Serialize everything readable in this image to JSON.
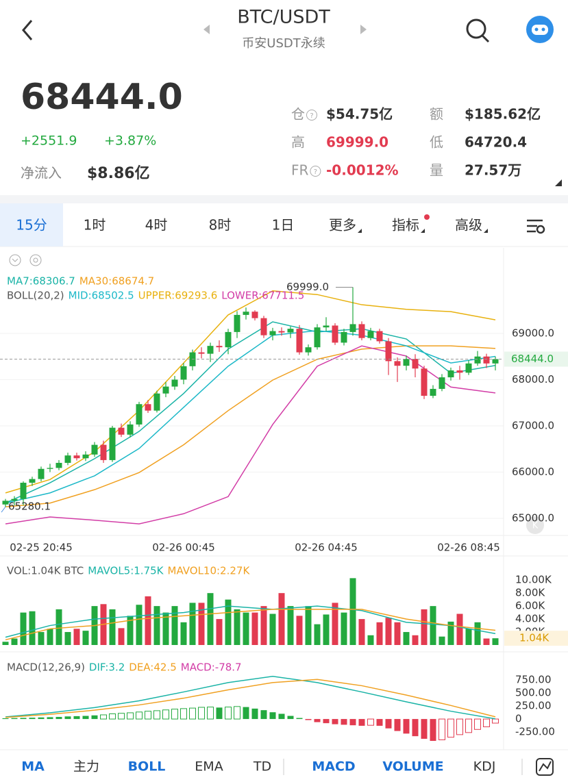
{
  "header": {
    "title": "BTC/USDT",
    "subtitle": "币安USDT永续"
  },
  "quote": {
    "price": "68444.0",
    "change": "+2551.9",
    "change_pct": "+3.87%",
    "netflow_label": "净流入",
    "netflow": "$8.86亿"
  },
  "stats": [
    {
      "label": "仓",
      "value": "$54.75亿",
      "help": true
    },
    {
      "label": "额",
      "value": "$185.62亿"
    },
    {
      "label": "高",
      "value": "69999.0",
      "color": "#e23b50"
    },
    {
      "label": "低",
      "value": "64720.4"
    },
    {
      "label": "FR",
      "value": "-0.0012%",
      "help": true,
      "color": "#e23b50"
    },
    {
      "label": "量",
      "value": "27.57万"
    }
  ],
  "tabs": {
    "items": [
      "15分",
      "1时",
      "4时",
      "8时",
      "1日",
      "更多",
      "指标",
      "高级"
    ],
    "selected": 0
  },
  "chart_data": [
    {
      "type": "candlestick",
      "up_color": "#23a93f",
      "down_color": "#e23b50",
      "grid": true,
      "categories": [
        null,
        null,
        null,
        null,
        "02-25 20:45",
        null,
        null,
        null,
        null,
        null,
        null,
        null,
        null,
        null,
        null,
        null,
        null,
        null,
        null,
        null,
        "02-26 00:45",
        null,
        null,
        null,
        null,
        null,
        null,
        null,
        null,
        null,
        null,
        null,
        null,
        null,
        null,
        null,
        "02-26 04:45",
        null,
        null,
        null,
        null,
        null,
        null,
        null,
        null,
        null,
        null,
        null,
        null,
        null,
        null,
        null,
        "02-26 08:45",
        null,
        null,
        null
      ],
      "candles": [
        [
          65300,
          65420,
          65250,
          65380
        ],
        [
          65380,
          65480,
          65280,
          65420
        ],
        [
          65420,
          65800,
          65280.1,
          65770
        ],
        [
          65770,
          65900,
          65700,
          65850
        ],
        [
          65850,
          66120,
          65800,
          66070
        ],
        [
          66070,
          66180,
          66000,
          66090
        ],
        [
          66090,
          66260,
          66040,
          66200
        ],
        [
          66200,
          66420,
          66150,
          66360
        ],
        [
          66360,
          66420,
          66250,
          66300
        ],
        [
          66300,
          66450,
          66240,
          66380
        ],
        [
          66380,
          66650,
          66330,
          66590
        ],
        [
          66590,
          66680,
          66200,
          66260
        ],
        [
          66260,
          67000,
          66220,
          66960
        ],
        [
          66960,
          67050,
          66760,
          66810
        ],
        [
          66810,
          67100,
          66750,
          67030
        ],
        [
          67030,
          67520,
          66980,
          67470
        ],
        [
          67470,
          67560,
          67280,
          67330
        ],
        [
          67330,
          67760,
          67290,
          67700
        ],
        [
          67700,
          67950,
          67620,
          67850
        ],
        [
          67850,
          68080,
          67780,
          68000
        ],
        [
          68000,
          68360,
          67900,
          68290
        ],
        [
          68290,
          68650,
          68200,
          68590
        ],
        [
          68590,
          68700,
          68460,
          68560
        ],
        [
          68560,
          68800,
          68380,
          68730
        ],
        [
          68730,
          68850,
          68600,
          68700
        ],
        [
          68700,
          69100,
          68550,
          69030
        ],
        [
          69030,
          69480,
          68900,
          69400
        ],
        [
          69400,
          69560,
          69300,
          69470
        ],
        [
          69470,
          69500,
          69280,
          69330
        ],
        [
          69330,
          69380,
          68900,
          68960
        ],
        [
          68960,
          69120,
          68850,
          69050
        ],
        [
          69050,
          69130,
          68950,
          69020
        ],
        [
          69020,
          69150,
          68900,
          69100
        ],
        [
          69100,
          69180,
          68540,
          68590
        ],
        [
          68590,
          68760,
          68520,
          68700
        ],
        [
          68700,
          69200,
          68650,
          69130
        ],
        [
          69130,
          69350,
          69050,
          69170
        ],
        [
          69170,
          69220,
          68750,
          68800
        ],
        [
          68800,
          69100,
          68740,
          69030
        ],
        [
          69030,
          69999,
          68950,
          69200
        ],
        [
          69200,
          69260,
          68850,
          68900
        ],
        [
          68900,
          69120,
          68850,
          69050
        ],
        [
          69050,
          69100,
          68780,
          68830
        ],
        [
          68830,
          68900,
          68100,
          68400
        ],
        [
          68400,
          68480,
          67950,
          68300
        ],
        [
          68300,
          68520,
          68200,
          68450
        ],
        [
          68450,
          68550,
          68050,
          68240
        ],
        [
          68240,
          68300,
          67580,
          67650
        ],
        [
          67650,
          67880,
          67600,
          67800
        ],
        [
          67800,
          68120,
          67750,
          68050
        ],
        [
          68050,
          68260,
          67980,
          68200
        ],
        [
          68200,
          68300,
          68000,
          68150
        ],
        [
          68150,
          68420,
          68100,
          68350
        ],
        [
          68350,
          68620,
          68300,
          68500
        ],
        [
          68500,
          68560,
          68250,
          68350
        ],
        [
          68350,
          68500,
          68200,
          68444
        ]
      ],
      "ylim": [
        64630,
        70850
      ],
      "yticks": [
        {
          "value": 65000,
          "label": "65000.0"
        },
        {
          "value": 66000,
          "label": "66000.0"
        },
        {
          "value": 67000,
          "label": "67000.0"
        },
        {
          "value": 68000,
          "label": "68000.0"
        },
        {
          "value": 69000,
          "label": "69000.0"
        }
      ],
      "series": [
        {
          "name": "MA7:68306.7",
          "color": "#19b3a6",
          "x": [
            0,
            5,
            10,
            15,
            20,
            25,
            30,
            35,
            40,
            45,
            50,
            55
          ],
          "values": [
            65330,
            65770,
            66290,
            66880,
            67700,
            68660,
            69250,
            69030,
            69100,
            68880,
            68140,
            68306.7
          ]
        },
        {
          "name": "MA30:68674.7",
          "color": "#f0a020",
          "x": [
            0,
            5,
            10,
            15,
            20,
            25,
            30,
            35,
            40,
            45,
            50,
            55
          ],
          "values": [
            65250,
            65330,
            65620,
            65990,
            66590,
            67330,
            67990,
            68440,
            68660,
            68730,
            68730,
            68674.7
          ]
        },
        {
          "name": "MID:68502.5",
          "color": "#1cb8c8",
          "x": [
            0,
            5,
            10,
            15,
            20,
            25,
            30,
            35,
            40,
            45,
            50,
            55
          ],
          "values": [
            65330,
            65550,
            65920,
            66510,
            67400,
            68290,
            68960,
            69060,
            68960,
            68730,
            68360,
            68502.5
          ]
        },
        {
          "name": "UPPER:69293.6",
          "color": "#e8b10e",
          "x": [
            0,
            5,
            10,
            15,
            20,
            25,
            30,
            35,
            40,
            45,
            50,
            55
          ],
          "values": [
            65550,
            65840,
            66440,
            67330,
            68360,
            69400,
            69920,
            69840,
            69620,
            69520,
            69470,
            69293.6
          ]
        },
        {
          "name": "LOWER:67711.5",
          "color": "#d23ca6",
          "x": [
            0,
            5,
            10,
            15,
            20,
            25,
            30,
            35,
            40,
            45,
            50,
            55
          ],
          "values": [
            64880,
            65030,
            64960,
            64880,
            65100,
            65470,
            67030,
            68290,
            68730,
            68510,
            67840,
            67711.5
          ]
        }
      ],
      "overlay_label": "BOLL(20,2)",
      "last": {
        "value": 68444,
        "label": "68444.0"
      },
      "annotations": [
        "69999.0",
        "65280.1"
      ]
    },
    {
      "type": "bar",
      "title": "VOL:1.04K BTC",
      "values": [
        500,
        1000,
        5000,
        5200,
        2000,
        2500,
        5500,
        2000,
        2500,
        2200,
        6000,
        6300,
        5500,
        2600,
        4500,
        6200,
        7500,
        6000,
        5000,
        6000,
        3500,
        6500,
        6500,
        8000,
        4000,
        7000,
        5500,
        5000,
        5000,
        6000,
        4800,
        8000,
        6000,
        4500,
        6000,
        3200,
        4700,
        6500,
        5000,
        10300,
        4000,
        1500,
        3500,
        4200,
        3500,
        2000,
        1500,
        5500,
        6000,
        1300,
        3600,
        4800,
        2500,
        3500,
        1000,
        1040
      ],
      "ylim": [
        0,
        13400
      ],
      "yticks": [
        {
          "value": 2000,
          "label": "2.00K"
        },
        {
          "value": 4000,
          "label": "4.00K"
        },
        {
          "value": 6000,
          "label": "6.00K"
        },
        {
          "value": 8000,
          "label": "8.00K"
        },
        {
          "value": 10000,
          "label": "10.00K"
        }
      ],
      "series": [
        {
          "name": "MAVOL5:1.75K",
          "color": "#19b3a6",
          "x": [
            0,
            5,
            10,
            15,
            20,
            25,
            30,
            35,
            40,
            45,
            50,
            55
          ],
          "values": [
            1200,
            3000,
            4000,
            4500,
            5000,
            6000,
            5500,
            6000,
            5300,
            3500,
            3000,
            1750
          ]
        },
        {
          "name": "MAVOL10:2.27K",
          "color": "#f0a020",
          "x": [
            0,
            5,
            10,
            15,
            20,
            25,
            30,
            35,
            40,
            45,
            50,
            55
          ],
          "values": [
            800,
            2500,
            3000,
            4000,
            4500,
            5000,
            5500,
            5500,
            5500,
            4000,
            3000,
            2270
          ]
        }
      ],
      "last": {
        "value": 1040,
        "label": "1.04K"
      }
    },
    {
      "type": "bar",
      "title": "MACD(12,26,9)",
      "name": "MACD:-78.7",
      "values": [
        15,
        18,
        22,
        25,
        30,
        35,
        40,
        50,
        55,
        60,
        70,
        80,
        100,
        110,
        120,
        135,
        150,
        160,
        175,
        190,
        200,
        210,
        225,
        230,
        220,
        230,
        240,
        230,
        200,
        170,
        130,
        100,
        60,
        20,
        -20,
        -60,
        -80,
        -100,
        -110,
        -120,
        -130,
        -120,
        -130,
        -180,
        -230,
        -280,
        -330,
        -380,
        -420,
        -400,
        -350,
        -300,
        -260,
        -200,
        -150,
        -78.7
      ],
      "ylim": [
        -525,
        1185
      ],
      "yticks": [
        {
          "value": -250,
          "label": "-250.00"
        },
        0,
        {
          "value": 250,
          "label": "250.00"
        },
        {
          "value": 500,
          "label": "500.00"
        },
        {
          "value": 750,
          "label": "750.00"
        }
      ],
      "series": [
        {
          "name": "DIF:3.2",
          "color": "#19b3a6",
          "x": [
            0,
            5,
            10,
            15,
            20,
            25,
            30,
            35,
            40,
            45,
            50,
            55
          ],
          "values": [
            40,
            120,
            220,
            350,
            520,
            700,
            820,
            700,
            520,
            330,
            150,
            3.2
          ]
        },
        {
          "name": "DEA:42.5",
          "color": "#f0a020",
          "x": [
            0,
            5,
            10,
            15,
            20,
            25,
            30,
            35,
            40,
            45,
            50,
            55
          ],
          "values": [
            30,
            90,
            170,
            270,
            400,
            560,
            700,
            760,
            640,
            460,
            260,
            42.5
          ]
        }
      ]
    }
  ],
  "indicator_bar": [
    {
      "label": "MA",
      "active": true
    },
    {
      "label": "主力"
    },
    {
      "label": "BOLL",
      "active": true
    },
    {
      "label": "EMA"
    },
    {
      "label": "TD"
    },
    {
      "label": "MACD",
      "active": true
    },
    {
      "label": "VOLUME",
      "active": true
    },
    {
      "label": "KDJ"
    }
  ]
}
